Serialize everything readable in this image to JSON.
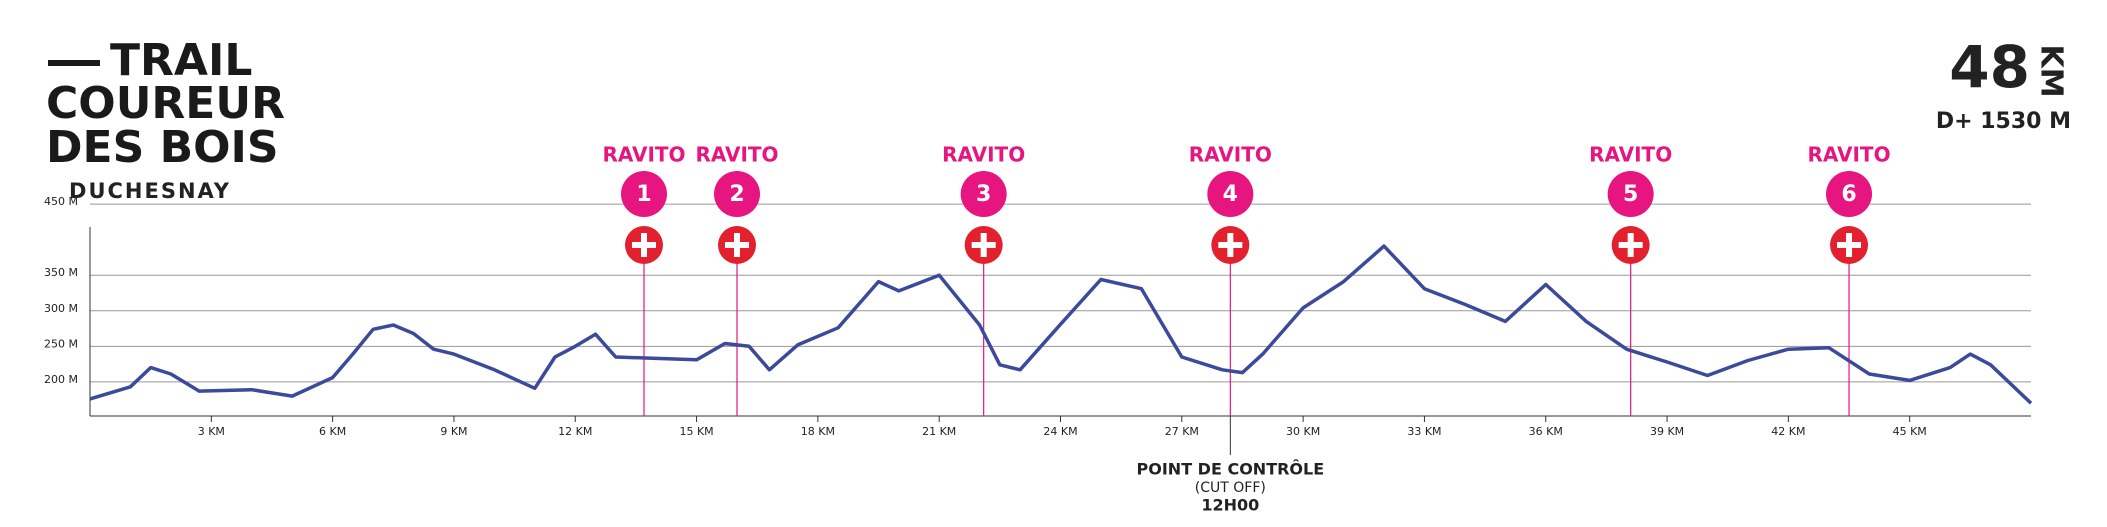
{
  "header": {
    "title": [
      "TRAIL",
      "COUREUR",
      "DES BOIS"
    ],
    "subtitle": "DUCHESNAY",
    "distance": "48",
    "distance_unit": "KM",
    "elevation_gain": "D+ 1530 M"
  },
  "chart_data": {
    "type": "line",
    "color": "#3b4a9a",
    "x": [
      0,
      1,
      1.5,
      2,
      2.7,
      4,
      5,
      6,
      6.5,
      7,
      7.5,
      8,
      8.5,
      9,
      10,
      11,
      11.5,
      12,
      12.5,
      13,
      14,
      15,
      15.7,
      16.3,
      16.8,
      17.5,
      18.5,
      19.5,
      20,
      21,
      22,
      22.5,
      23,
      24,
      25,
      26,
      27,
      28,
      28.5,
      29,
      30,
      31,
      32,
      33,
      34,
      35,
      36,
      37,
      38,
      39,
      40,
      41,
      42,
      43,
      44,
      45,
      46,
      46.5,
      47,
      48
    ],
    "values": [
      176,
      193,
      220,
      211,
      187,
      189,
      180,
      206,
      239,
      274,
      280,
      268,
      246,
      239,
      217,
      191,
      235,
      250,
      267,
      235,
      233,
      231,
      254,
      250,
      217,
      252,
      276,
      341,
      328,
      350,
      280,
      224,
      217,
      281,
      344,
      331,
      235,
      217,
      213,
      239,
      304,
      341,
      391,
      331,
      309,
      285,
      337,
      285,
      246,
      228,
      209,
      230,
      246,
      248,
      211,
      202,
      220,
      239,
      224,
      170
    ],
    "xlim": [
      0,
      48
    ],
    "ylim": [
      152,
      460
    ],
    "xticks": [
      {
        "value": 3,
        "label": "3 KM"
      },
      {
        "value": 6,
        "label": "6 KM"
      },
      {
        "value": 9,
        "label": "9 KM"
      },
      {
        "value": 12,
        "label": "12 KM"
      },
      {
        "value": 15,
        "label": "15 KM"
      },
      {
        "value": 18,
        "label": "18 KM"
      },
      {
        "value": 21,
        "label": "21 KM"
      },
      {
        "value": 24,
        "label": "24 KM"
      },
      {
        "value": 27,
        "label": "27 KM"
      },
      {
        "value": 30,
        "label": "30 KM"
      },
      {
        "value": 33,
        "label": "33 KM"
      },
      {
        "value": 36,
        "label": "36 KM"
      },
      {
        "value": 39,
        "label": "39 KM"
      },
      {
        "value": 42,
        "label": "42 KM"
      },
      {
        "value": 45,
        "label": "45 KM"
      }
    ],
    "yticks": [
      {
        "value": 200,
        "label": "200 M"
      },
      {
        "value": 250,
        "label": "250 M"
      },
      {
        "value": 300,
        "label": "300 M"
      },
      {
        "value": 350,
        "label": "350 M"
      },
      {
        "value": 450,
        "label": "450 M"
      }
    ],
    "grid": true,
    "markers": [
      {
        "label": "RAVITO",
        "number": "1",
        "x": 13.7
      },
      {
        "label": "RAVITO",
        "number": "2",
        "x": 16
      },
      {
        "label": "RAVITO",
        "number": "3",
        "x": 22.1
      },
      {
        "label": "RAVITO",
        "number": "4",
        "x": 28.2
      },
      {
        "label": "RAVITO",
        "number": "5",
        "x": 38.1
      },
      {
        "label": "RAVITO",
        "number": "6",
        "x": 43.5
      }
    ],
    "marker_color": "#e6157f",
    "cross_color": "#e2202e",
    "checkpoint": {
      "lines": [
        "POINT DE CONTRÔLE",
        "(CUT OFF)",
        "12H00"
      ],
      "x": 28.2
    }
  }
}
